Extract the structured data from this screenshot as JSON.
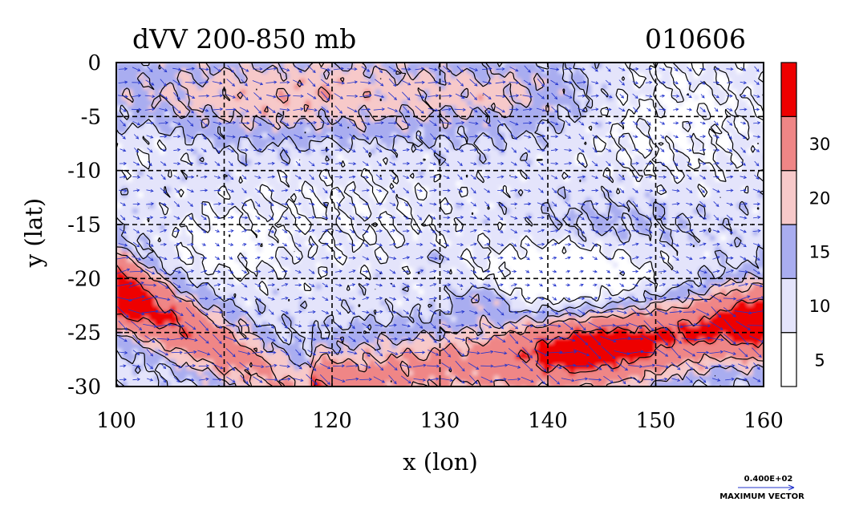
{
  "chart_data": {
    "type": "heatmap",
    "title": "dVV 200-850 mb",
    "date_label": "010606",
    "xlabel": "x (lon)",
    "ylabel": "y (lat)",
    "xlim": [
      100,
      160
    ],
    "ylim": [
      -30,
      0
    ],
    "x_ticks": [
      100,
      110,
      120,
      130,
      140,
      150,
      160
    ],
    "y_ticks": [
      0,
      -5,
      -10,
      -15,
      -20,
      -25,
      -30
    ],
    "grid": "dashed at 10 degree intervals",
    "colorbar": {
      "levels": [
        0,
        5,
        10,
        15,
        20,
        30,
        40
      ],
      "tick_labels": [
        "5",
        "10",
        "15",
        "20",
        "30"
      ],
      "colors": [
        "#ffffff",
        "#e4e4fb",
        "#a9adf0",
        "#f7c9c9",
        "#ef8686",
        "#ee0000"
      ]
    },
    "vector_legend": {
      "value_label": "0.400E+02",
      "caption": "MAXIMUM VECTOR",
      "color": "#2233cc"
    }
  }
}
